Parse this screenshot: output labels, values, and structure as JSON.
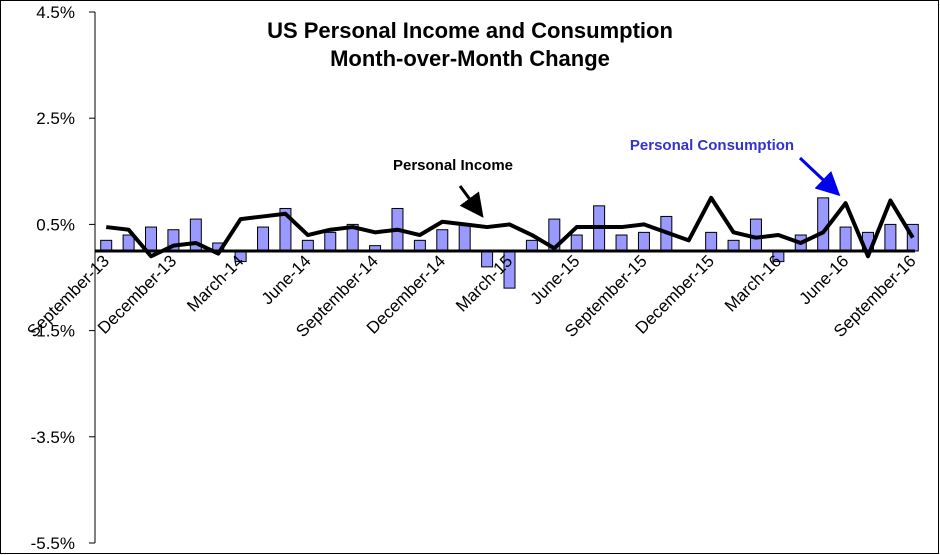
{
  "chart_data": {
    "type": "bar-line",
    "title": "US Personal Income and Consumption",
    "subtitle": "Month-over-Month Change",
    "categories": [
      "September-13",
      null,
      null,
      "December-13",
      null,
      null,
      "March-14",
      null,
      null,
      "June-14",
      null,
      null,
      "September-14",
      null,
      null,
      "December-14",
      null,
      null,
      "March-15",
      null,
      null,
      "June-15",
      null,
      null,
      "September-15",
      null,
      null,
      "December-15",
      null,
      null,
      "March-16",
      null,
      null,
      "June-16",
      null,
      null,
      "September-16"
    ],
    "series": [
      {
        "name": "Personal Consumption",
        "type": "bar",
        "color": "#9999ff",
        "values": [
          0.2,
          0.3,
          0.45,
          0.4,
          0.6,
          0.15,
          -0.2,
          0.45,
          0.8,
          0.2,
          0.35,
          0.5,
          0.1,
          0.8,
          0.2,
          0.4,
          0.5,
          -0.3,
          -0.7,
          0.2,
          0.6,
          0.3,
          0.85,
          0.3,
          0.35,
          0.65,
          0.0,
          0.35,
          0.2,
          0.6,
          -0.2,
          0.3,
          1.0,
          0.45,
          0.35,
          0.5,
          0.5
        ]
      },
      {
        "name": "Personal Income",
        "type": "line",
        "color": "#000000",
        "values": [
          0.45,
          0.4,
          -0.1,
          0.1,
          0.15,
          -0.05,
          0.6,
          0.65,
          0.7,
          0.3,
          0.4,
          0.45,
          0.35,
          0.4,
          0.3,
          0.55,
          0.5,
          0.45,
          0.5,
          0.3,
          0.05,
          0.45,
          0.45,
          0.45,
          0.5,
          0.35,
          0.2,
          1.0,
          0.35,
          0.25,
          0.3,
          0.15,
          0.35,
          0.9,
          -0.1,
          0.95,
          0.25
        ]
      }
    ],
    "ylim": [
      -5.5,
      4.5
    ],
    "yticks": [
      {
        "value": -5.5,
        "label": "-5.5%"
      },
      {
        "value": -3.5,
        "label": "-3.5%"
      },
      {
        "value": -1.5,
        "label": "-1.5%"
      },
      {
        "value": 0.5,
        "label": "0.5%"
      },
      {
        "value": 2.5,
        "label": "2.5%"
      },
      {
        "value": 4.5,
        "label": "4.5%"
      }
    ],
    "annotations": [
      "Personal Income",
      "Personal Consumption"
    ],
    "annotation_colors": [
      "#000000",
      "#3333cc"
    ]
  }
}
